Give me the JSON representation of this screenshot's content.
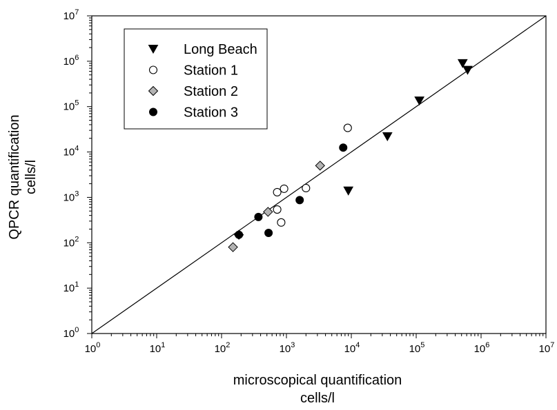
{
  "chart_data": {
    "type": "scatter",
    "title": "",
    "xlabel": [
      "microscopical quantification",
      "cells/l"
    ],
    "ylabel": [
      "QPCR quantification",
      "cells/l"
    ],
    "xscale": "log",
    "yscale": "log",
    "xlim": [
      1,
      10000000
    ],
    "ylim": [
      1,
      10000000
    ],
    "ticks": [
      {
        "value": 1,
        "base": "10",
        "exp": "0"
      },
      {
        "value": 10,
        "base": "10",
        "exp": "1"
      },
      {
        "value": 100,
        "base": "10",
        "exp": "2"
      },
      {
        "value": 1000,
        "base": "10",
        "exp": "3"
      },
      {
        "value": 10000,
        "base": "10",
        "exp": "4"
      },
      {
        "value": 100000,
        "base": "10",
        "exp": "5"
      },
      {
        "value": 1000000,
        "base": "10",
        "exp": "6"
      },
      {
        "value": 10000000,
        "base": "10",
        "exp": "7"
      }
    ],
    "grid": false,
    "legend_position": "top-left",
    "reference_line": {
      "from": [
        1,
        1
      ],
      "to": [
        10000000,
        10000000
      ]
    },
    "series": [
      {
        "name": "Long Beach",
        "marker": "triangle-down",
        "fill": "#000000",
        "points": [
          {
            "x": 520000,
            "y": 900000
          },
          {
            "x": 620000,
            "y": 640000
          },
          {
            "x": 112000,
            "y": 135000
          },
          {
            "x": 36000,
            "y": 22000
          },
          {
            "x": 9000,
            "y": 1400
          }
        ]
      },
      {
        "name": "Station 1",
        "marker": "circle-open",
        "fill": "#ffffff",
        "points": [
          {
            "x": 8800,
            "y": 34000
          },
          {
            "x": 2000,
            "y": 1600
          },
          {
            "x": 920,
            "y": 1550
          },
          {
            "x": 720,
            "y": 1300
          },
          {
            "x": 720,
            "y": 540
          },
          {
            "x": 830,
            "y": 280
          }
        ]
      },
      {
        "name": "Station 2",
        "marker": "diamond",
        "fill": "#b3b3b3",
        "points": [
          {
            "x": 3300,
            "y": 5000
          },
          {
            "x": 520,
            "y": 480
          },
          {
            "x": 150,
            "y": 80
          },
          {
            "x": 185,
            "y": 150
          }
        ]
      },
      {
        "name": "Station 3",
        "marker": "circle-filled",
        "fill": "#000000",
        "points": [
          {
            "x": 7500,
            "y": 12500
          },
          {
            "x": 1600,
            "y": 870
          },
          {
            "x": 370,
            "y": 370
          },
          {
            "x": 185,
            "y": 150
          },
          {
            "x": 530,
            "y": 165
          }
        ]
      }
    ]
  }
}
